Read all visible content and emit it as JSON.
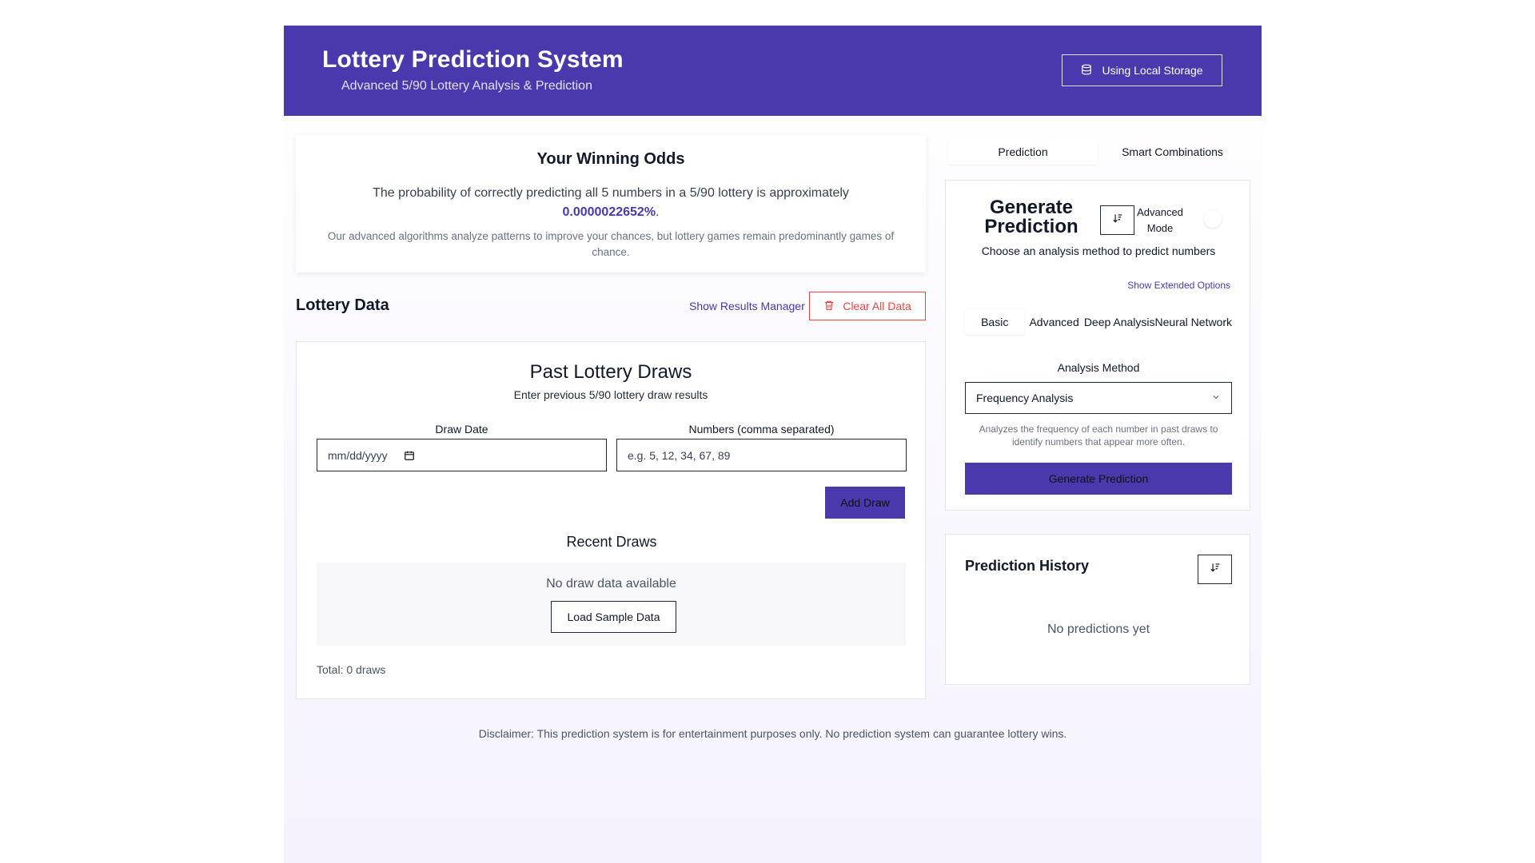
{
  "header": {
    "title": "Lottery Prediction System",
    "subtitle": "Advanced 5/90 Lottery Analysis & Prediction",
    "storage_button": "Using Local Storage"
  },
  "odds": {
    "title": "Your Winning Odds",
    "text_before": "The probability of correctly predicting all 5 numbers in a 5/90 lottery is approximately",
    "probability": "0.0000022652%",
    "text_after": ".",
    "note": "Our advanced algorithms analyze patterns to improve your chances, but lottery games remain predominantly games of chance."
  },
  "lottery_data": {
    "title": "Lottery Data",
    "results_manager_link": "Show Results Manager",
    "clear_button": "Clear All Data"
  },
  "past_draws": {
    "title": "Past Lottery Draws",
    "description": "Enter previous 5/90 lottery draw results",
    "date_label": "Draw Date",
    "date_placeholder": "mm/dd/yyyy",
    "numbers_label": "Numbers (comma separated)",
    "numbers_placeholder": "e.g. 5, 12, 34, 67, 89",
    "add_button": "Add Draw",
    "recent_title": "Recent Draws",
    "empty_message": "No draw data available",
    "sample_button": "Load Sample Data",
    "total": "Total: 0 draws"
  },
  "disclaimer": "Disclaimer: This prediction system is for entertainment purposes only. No prediction system can guarantee lottery wins.",
  "right_tabs": [
    "Prediction",
    "Smart Combinations"
  ],
  "generate": {
    "title": "Generate Prediction",
    "advanced_mode": "Advanced Mode",
    "choose_text": "Choose an analysis method to predict numbers",
    "extended_link": "Show Extended Options",
    "sub_tabs": [
      "Basic",
      "Advanced",
      "Deep Analysis",
      "Neural Network"
    ],
    "method_label": "Analysis Method",
    "method_value": "Frequency Analysis",
    "method_description": "Analyzes the frequency of each number in past draws to identify numbers that appear more often.",
    "button": "Generate Prediction"
  },
  "history": {
    "title": "Prediction History",
    "empty": "No predictions yet"
  },
  "colors": {
    "brand": "#4a38ad",
    "danger": "#ef4444"
  }
}
